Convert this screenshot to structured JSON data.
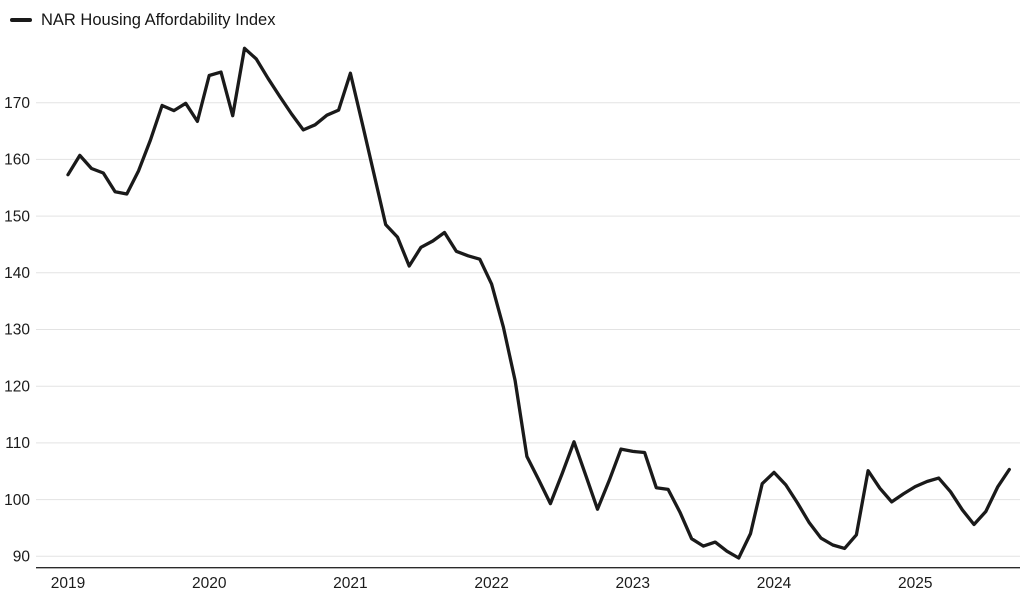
{
  "chart": {
    "legend": {
      "swatch_color": "#1a1a1a"
    }
  },
  "chart_data": {
    "type": "line",
    "title": "NAR Housing Affordability Index",
    "frequency": "monthly",
    "x_start": "2019-01",
    "x_end": "2025-09",
    "x_tick_labels": [
      "2019",
      "2020",
      "2021",
      "2022",
      "2023",
      "2024",
      "2025"
    ],
    "y_ticks": [
      90,
      100,
      110,
      120,
      130,
      140,
      150,
      160,
      170
    ],
    "ylim": [
      88,
      181
    ],
    "grid": "horizontal",
    "legend_position": "top-left",
    "series": [
      {
        "name": "NAR Housing Affordability Index",
        "color": "#1a1a1a",
        "points": [
          {
            "year": 2019,
            "values": [
              157.3,
              160.7,
              158.4,
              157.6,
              154.3,
              153.9,
              158.0,
              163.4,
              169.5,
              168.6,
              169.9,
              166.7
            ]
          },
          {
            "year": 2020,
            "values": [
              174.8,
              175.4,
              167.7,
              179.6,
              177.7,
              174.3,
              171.1,
              168.0,
              165.2,
              166.1,
              167.8,
              168.7
            ]
          },
          {
            "year": 2021,
            "values": [
              175.2,
              166.4,
              157.5,
              148.5,
              146.3,
              141.2,
              144.5,
              145.6,
              147.1,
              143.8,
              143.0,
              142.4
            ]
          },
          {
            "year": 2022,
            "values": [
              138.0,
              130.4,
              121.0,
              107.6,
              103.5,
              99.3,
              104.6,
              110.2,
              104.3,
              98.3,
              103.4,
              108.9
            ]
          },
          {
            "year": 2023,
            "values": [
              108.5,
              108.3,
              102.1,
              101.8,
              97.8,
              93.1,
              91.8,
              92.5,
              90.9,
              89.7,
              94.0,
              102.8
            ]
          },
          {
            "year": 2024,
            "values": [
              104.8,
              102.6,
              99.4,
              95.9,
              93.2,
              92.0,
              91.4,
              93.8,
              105.1,
              102.0,
              99.6,
              101.0
            ]
          },
          {
            "year": 2025,
            "values": [
              102.3,
              103.2,
              103.8,
              101.4,
              98.2,
              95.6,
              97.9,
              102.2,
              105.3
            ]
          }
        ]
      }
    ]
  },
  "colors": {
    "background": "#ffffff",
    "gridline": "#e3e3e3",
    "axis_line": "#2b2b2b",
    "tick_label": "#1b1b1b",
    "line": "#1a1a1a"
  }
}
